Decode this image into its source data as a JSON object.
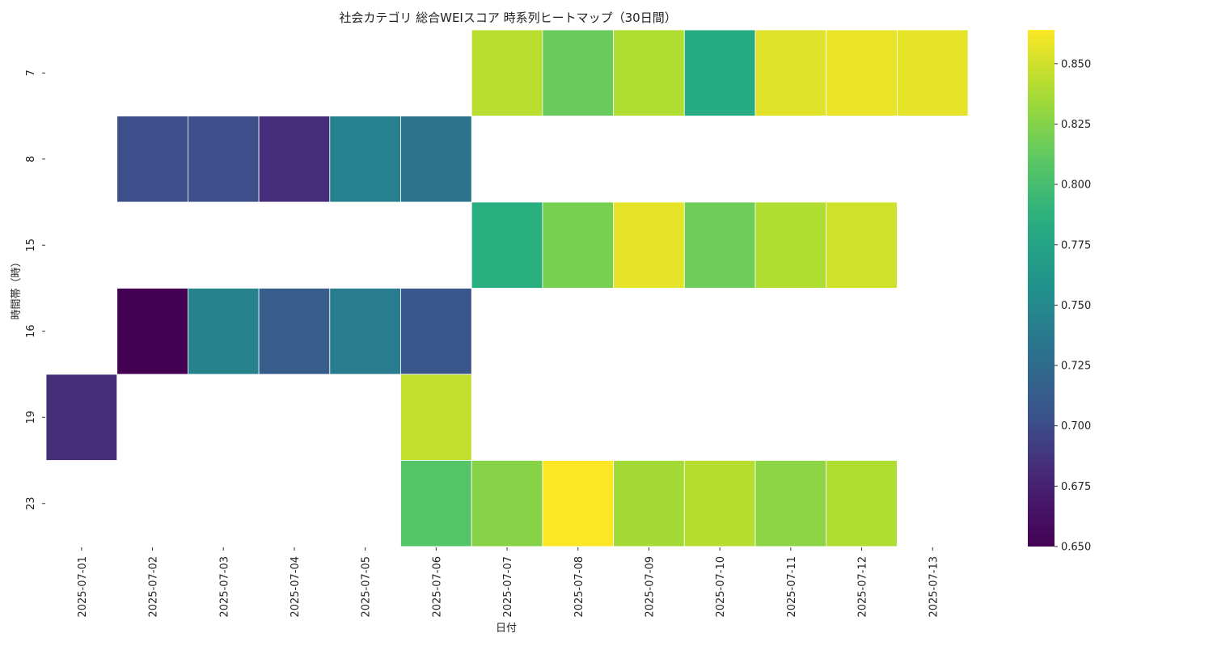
{
  "chart_data": {
    "type": "heatmap",
    "title": "社会カテゴリ 総合WEIスコア 時系列ヒートマップ（30日間）",
    "xlabel": "日付",
    "ylabel": "時間帯（時）",
    "x_categories": [
      "2025-07-01",
      "2025-07-02",
      "2025-07-03",
      "2025-07-04",
      "2025-07-05",
      "2025-07-06",
      "2025-07-07",
      "2025-07-08",
      "2025-07-09",
      "2025-07-10",
      "2025-07-11",
      "2025-07-12",
      "2025-07-13"
    ],
    "y_categories": [
      "7",
      "8",
      "15",
      "16",
      "19",
      "23"
    ],
    "values": [
      [
        null,
        null,
        null,
        null,
        null,
        null,
        0.843,
        0.815,
        0.84,
        0.783,
        0.855,
        0.858,
        0.857
      ],
      [
        null,
        0.702,
        0.702,
        0.683,
        0.743,
        0.732,
        null,
        null,
        null,
        null,
        null,
        null,
        null
      ],
      [
        null,
        null,
        null,
        null,
        null,
        null,
        0.786,
        0.82,
        0.857,
        0.817,
        0.84,
        0.85,
        null
      ],
      [
        null,
        0.65,
        0.745,
        0.713,
        0.74,
        0.708,
        null,
        null,
        null,
        null,
        null,
        null,
        null
      ],
      [
        0.683,
        null,
        null,
        null,
        null,
        0.846,
        null,
        null,
        null,
        null,
        null,
        null,
        null
      ],
      [
        null,
        null,
        null,
        null,
        null,
        0.807,
        0.826,
        0.864,
        0.836,
        0.842,
        0.828,
        0.84,
        null
      ]
    ],
    "colormap": "viridis",
    "vmin": 0.65,
    "vmax": 0.864,
    "colorbar_ticks": [
      "0.650",
      "0.675",
      "0.700",
      "0.725",
      "0.750",
      "0.775",
      "0.800",
      "0.825",
      "0.850"
    ]
  }
}
